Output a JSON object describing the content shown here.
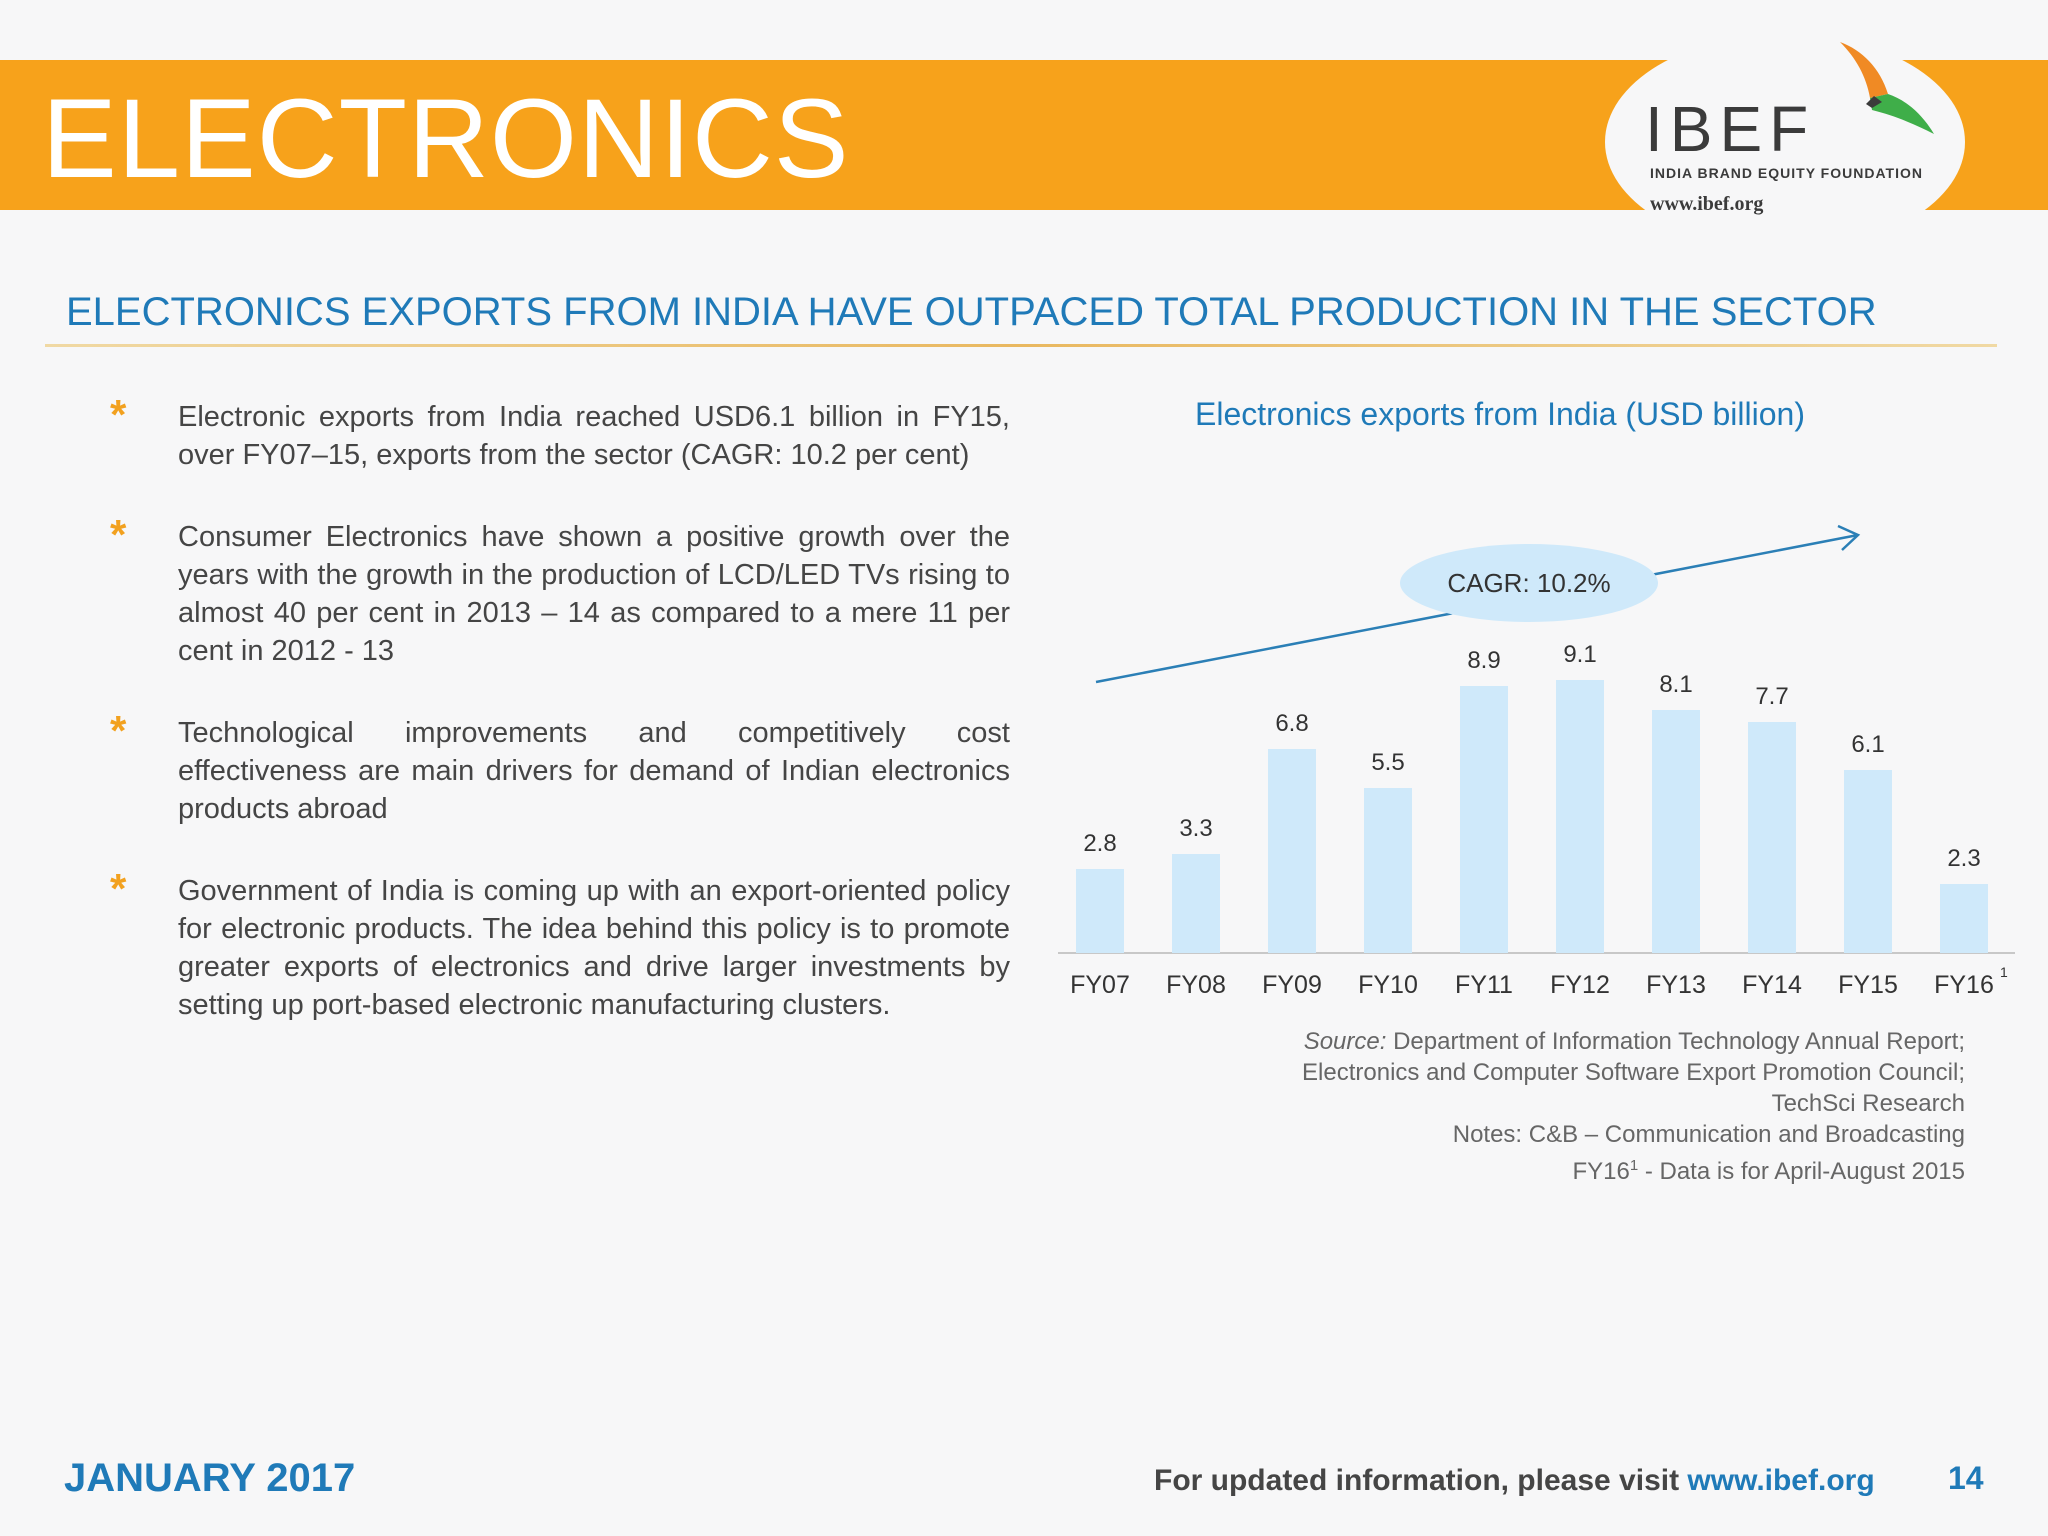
{
  "header": {
    "title": "ELECTRONICS",
    "logo_text": "IBEF",
    "logo_subtext": "INDIA BRAND EQUITY FOUNDATION",
    "logo_url": "www.ibef.org"
  },
  "subtitle": "ELECTRONICS EXPORTS FROM INDIA HAVE OUTPACED TOTAL PRODUCTION IN THE SECTOR",
  "bullets": [
    "Electronic exports from India reached USD6.1 billion in FY15, over FY07–15, exports from the sector (CAGR: 10.2 per cent)",
    "Consumer Electronics have shown a positive growth over the years with the growth in the production of LCD/LED TVs rising to almost 40 per cent in 2013 – 14 as compared to a mere 11 per cent in 2012 - 13",
    "Technological improvements and competitively cost effectiveness are main drivers for demand of Indian electronics products abroad",
    "Government of India is coming up with an export-oriented policy for electronic products. The idea behind this policy is to promote greater exports of electronics and drive larger investments by setting up port-based electronic manufacturing clusters."
  ],
  "bullet_marker": "*",
  "chart_data": {
    "type": "bar",
    "title": "Electronics exports from India (USD billion)",
    "categories": [
      "FY07",
      "FY08",
      "FY09",
      "FY10",
      "FY11",
      "FY12",
      "FY13",
      "FY14",
      "FY15",
      "FY16"
    ],
    "category_notes": [
      "",
      "",
      "",
      "",
      "",
      "",
      "",
      "",
      "",
      "1"
    ],
    "values": [
      2.8,
      3.3,
      6.8,
      5.5,
      8.9,
      9.1,
      8.1,
      7.7,
      6.1,
      2.3
    ],
    "value_labels": [
      "2.8",
      "3.3",
      "6.8",
      "5.5",
      "8.9",
      "9.1",
      "8.1",
      "7.7",
      "6.1",
      "2.3"
    ],
    "annotation": "CAGR: 10.2%",
    "ylim": [
      0,
      10
    ],
    "xlabel": "",
    "ylabel": "",
    "grid": false,
    "bar_color": "#cfe9fa",
    "arrow_color": "#2b7fb6"
  },
  "source": {
    "label": "Source:",
    "text": " Department of Information Technology Annual Report;",
    "line2": "Electronics and Computer Software Export Promotion Council;",
    "line3": "TechSci Research",
    "line4": "Notes: C&B – Communication and Broadcasting",
    "line5_prefix": "FY16",
    "line5_sup": "1",
    "line5_rest": " - Data is for April-August 2015"
  },
  "footer": {
    "date": "JANUARY 2017",
    "visit_text": "For updated information, please visit ",
    "visit_link": "www.ibef.org",
    "page": "14"
  },
  "colors": {
    "banner": "#f7a21b",
    "accent_blue": "#1f7ab8",
    "bullet_star": "#f2a11f"
  }
}
